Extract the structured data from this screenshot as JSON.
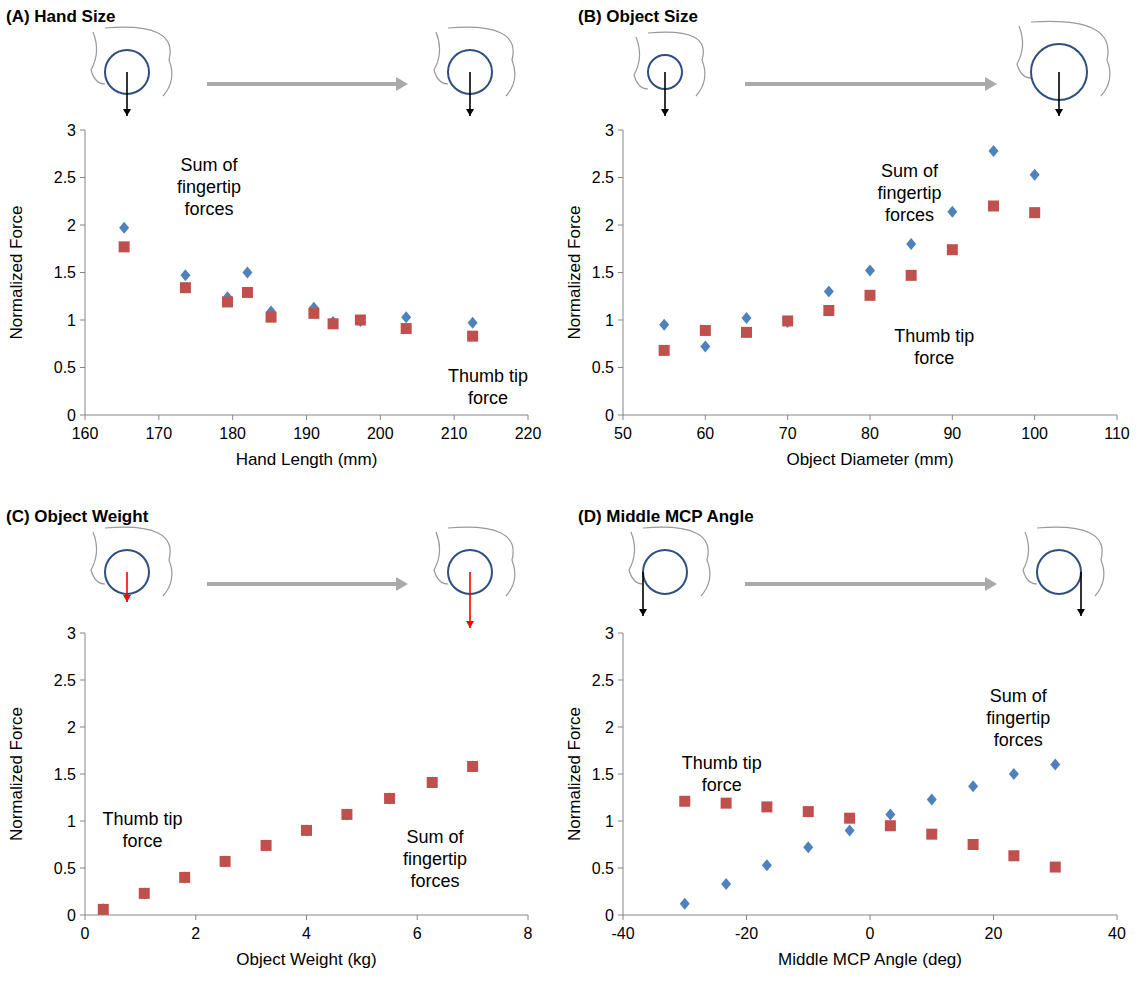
{
  "chart_data": [
    {
      "type": "scatter",
      "title": "(A) Hand Size",
      "x_label": "Hand Length (mm)",
      "y_label": "Normalized Force",
      "xlim": [
        160,
        220
      ],
      "ylim": [
        0,
        3
      ],
      "xticks": [
        160,
        170,
        180,
        190,
        200,
        210,
        220
      ],
      "yticks": [
        0,
        0.5,
        1,
        1.5,
        2,
        2.5,
        3
      ],
      "grid": false,
      "series": [
        {
          "name": "Sum of fingertip forces",
          "color": "#4f81bd",
          "marker": "diamond",
          "x": [
            165.3,
            173.6,
            179.3,
            182,
            185.2,
            191,
            193.6,
            197.3,
            203.5,
            212.5
          ],
          "values": [
            1.97,
            1.47,
            1.24,
            1.5,
            1.09,
            1.13,
            0.98,
            0.99,
            1.03,
            0.97
          ]
        },
        {
          "name": "Thumb tip force",
          "color": "#c0504d",
          "marker": "square",
          "x": [
            165.3,
            173.6,
            179.3,
            182,
            185.2,
            191,
            193.6,
            197.3,
            203.5,
            212.5
          ],
          "values": [
            1.77,
            1.34,
            1.19,
            1.29,
            1.03,
            1.07,
            0.96,
            1.0,
            0.91,
            0.83
          ]
        }
      ]
    },
    {
      "type": "scatter",
      "title": "(B) Object Size",
      "x_label": "Object Diameter (mm)",
      "y_label": "Normalized Force",
      "xlim": [
        50,
        110
      ],
      "ylim": [
        0,
        3
      ],
      "xticks": [
        50,
        60,
        70,
        80,
        90,
        100,
        110
      ],
      "yticks": [
        0,
        0.5,
        1,
        1.5,
        2,
        2.5,
        3
      ],
      "grid": false,
      "series": [
        {
          "name": "Sum of fingertip forces",
          "color": "#4f81bd",
          "marker": "diamond",
          "x": [
            55,
            60,
            65,
            70,
            75,
            80,
            85,
            90,
            95,
            100
          ],
          "values": [
            0.95,
            0.72,
            1.02,
            0.98,
            1.3,
            1.52,
            1.8,
            2.14,
            2.78,
            2.53
          ]
        },
        {
          "name": "Thumb tip force",
          "color": "#c0504d",
          "marker": "square",
          "x": [
            55,
            60,
            65,
            70,
            75,
            80,
            85,
            90,
            95,
            100
          ],
          "values": [
            0.68,
            0.89,
            0.87,
            0.99,
            1.1,
            1.26,
            1.47,
            1.74,
            2.2,
            2.13
          ]
        }
      ]
    },
    {
      "type": "scatter",
      "title": "(C) Object Weight",
      "x_label": "Object Weight (kg)",
      "y_label": "Normalized Force",
      "xlim": [
        0,
        8
      ],
      "ylim": [
        0,
        3
      ],
      "xticks": [
        0,
        2,
        4,
        6,
        8
      ],
      "yticks": [
        0,
        0.5,
        1,
        1.5,
        2,
        2.5,
        3
      ],
      "grid": false,
      "series": [
        {
          "name": "Sum of fingertip forces",
          "color": "#4f81bd",
          "marker": "diamond",
          "x": [
            0.33,
            1.07,
            1.8,
            2.53,
            3.27,
            4.0,
            4.73,
            5.5,
            6.27,
            7.0
          ],
          "values": [
            0.06,
            0.23,
            0.4,
            0.57,
            0.74,
            0.9,
            1.07,
            1.24,
            1.41,
            1.58
          ]
        },
        {
          "name": "Thumb tip force",
          "color": "#c0504d",
          "marker": "square",
          "x": [
            0.33,
            1.07,
            1.8,
            2.53,
            3.27,
            4.0,
            4.73,
            5.5,
            6.27,
            7.0
          ],
          "values": [
            0.06,
            0.23,
            0.4,
            0.57,
            0.74,
            0.9,
            1.07,
            1.24,
            1.41,
            1.58
          ]
        }
      ]
    },
    {
      "type": "scatter",
      "title": "(D) Middle MCP Angle",
      "x_label": "Middle MCP Angle (deg)",
      "y_label": "Normalized Force",
      "xlim": [
        -40,
        40
      ],
      "ylim": [
        0,
        3
      ],
      "xticks": [
        -40,
        -20,
        0,
        20,
        40
      ],
      "yticks": [
        0,
        0.5,
        1,
        1.5,
        2,
        2.5,
        3
      ],
      "grid": false,
      "series": [
        {
          "name": "Sum of fingertip forces",
          "color": "#4f81bd",
          "marker": "diamond",
          "x": [
            -30,
            -23.3,
            -16.7,
            -10,
            -3.3,
            3.3,
            10,
            16.7,
            23.3,
            30
          ],
          "values": [
            0.12,
            0.33,
            0.53,
            0.72,
            0.9,
            1.07,
            1.23,
            1.37,
            1.5,
            1.6
          ]
        },
        {
          "name": "Thumb tip force",
          "color": "#c0504d",
          "marker": "square",
          "x": [
            -30,
            -23.3,
            -16.7,
            -10,
            -3.3,
            3.3,
            10,
            16.7,
            23.3,
            30
          ],
          "values": [
            1.21,
            1.19,
            1.15,
            1.1,
            1.03,
            0.95,
            0.86,
            0.75,
            0.63,
            0.51
          ]
        }
      ]
    }
  ]
}
